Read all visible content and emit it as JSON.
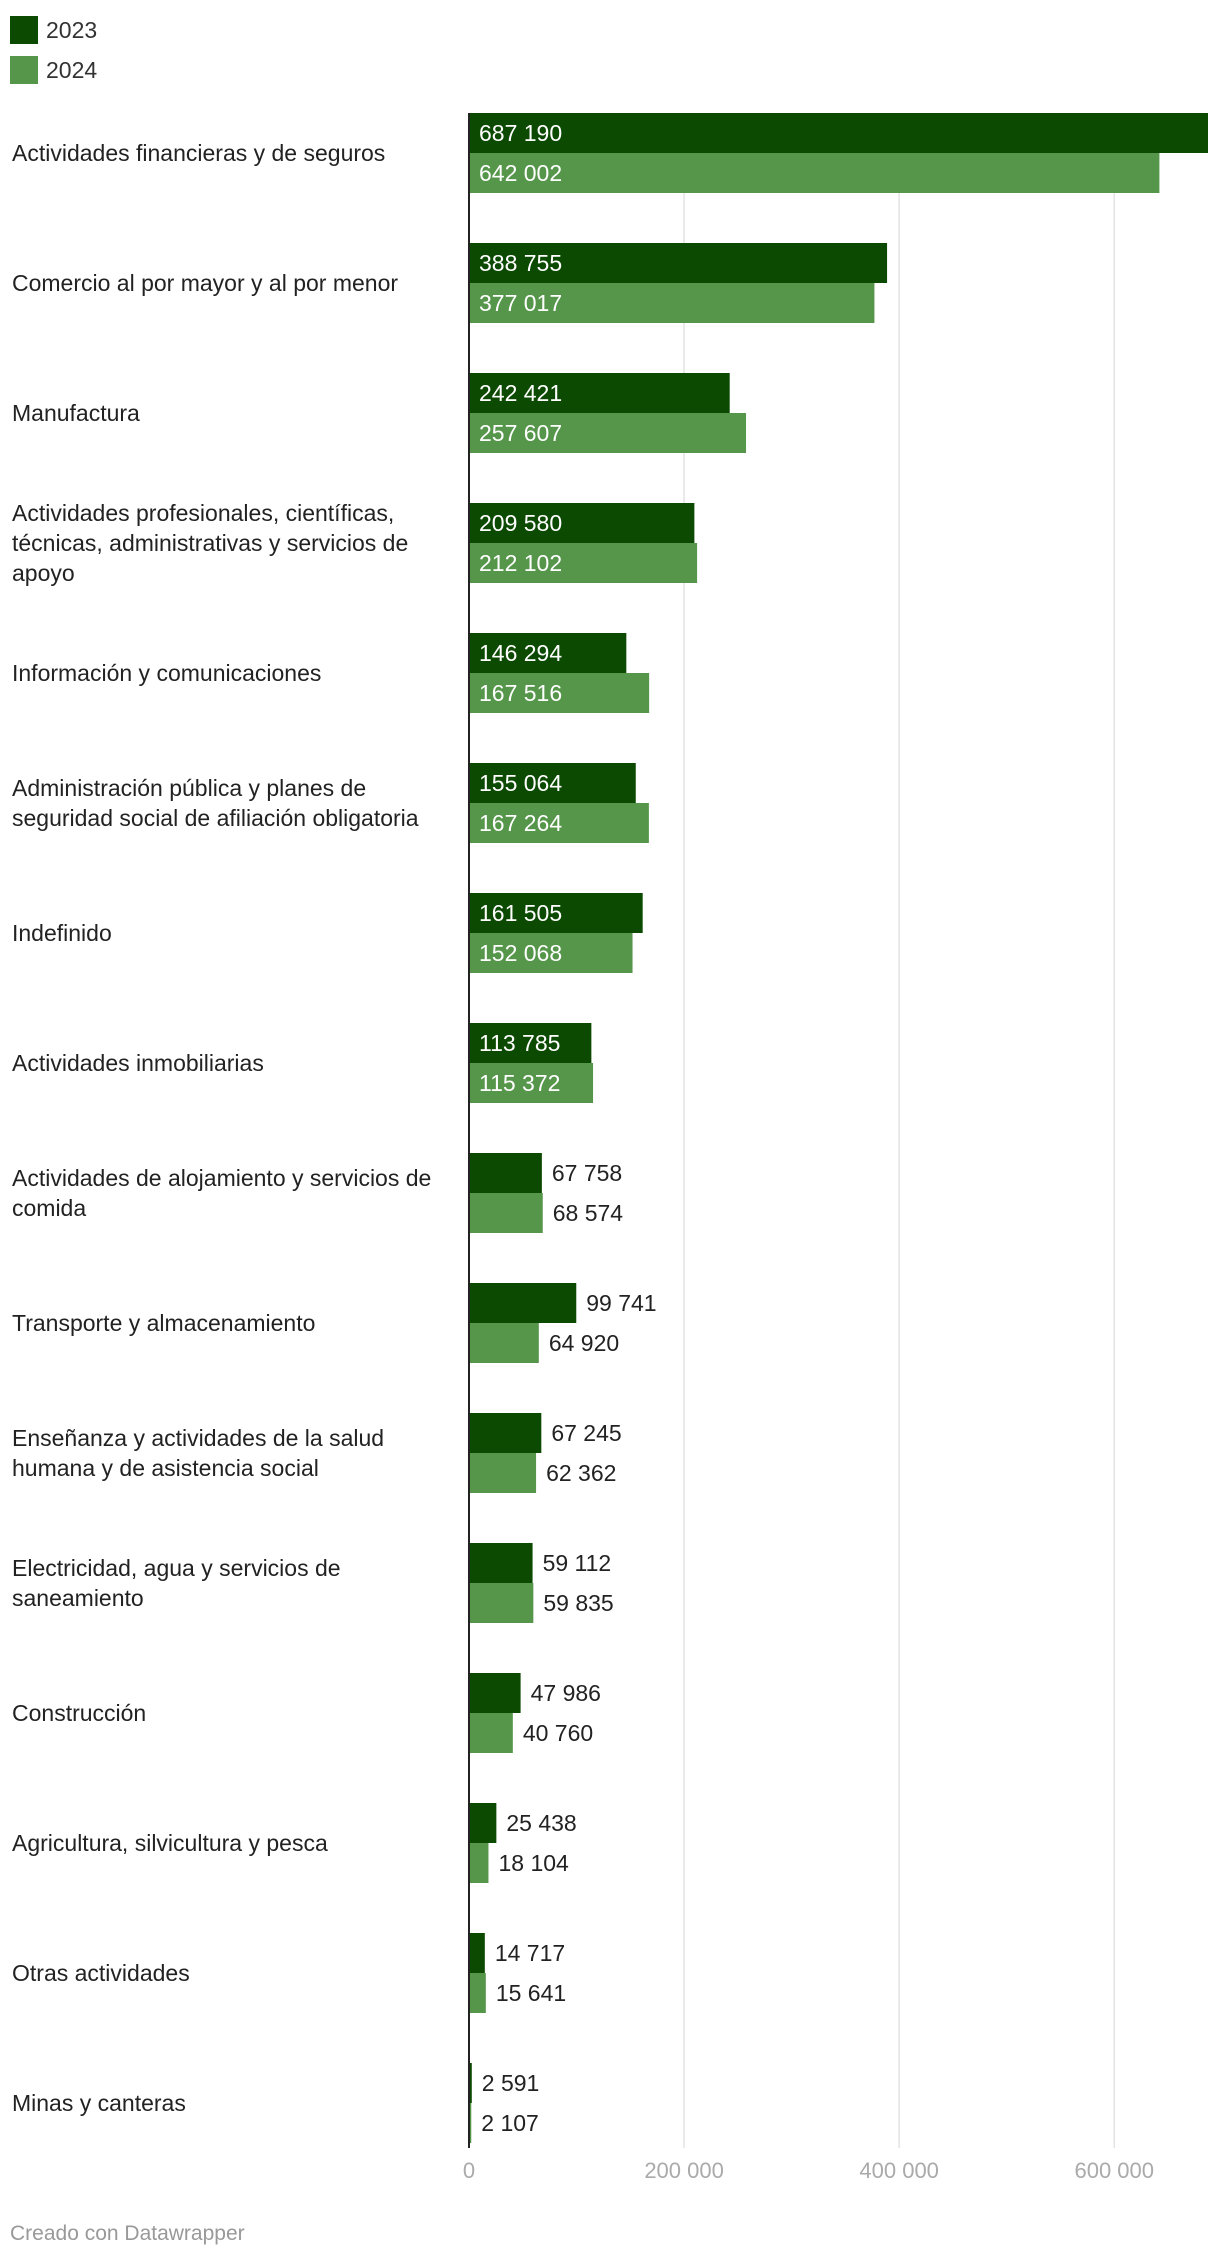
{
  "chart_data": {
    "type": "bar",
    "orientation": "horizontal",
    "title": "",
    "xlabel": "",
    "ylabel": "",
    "xlim": [
      0,
      687190
    ],
    "x_ticks": [
      0,
      200000,
      400000,
      600000
    ],
    "x_tick_labels": [
      "0",
      "200 000",
      "400 000",
      "600 000"
    ],
    "grid": true,
    "legend_position": "top-left",
    "categories": [
      "Actividades financieras y de seguros",
      "Comercio al por mayor y al por menor",
      "Manufactura",
      "Actividades profesionales, científicas, técnicas, administrativas y servicios de apoyo",
      "Información y comunicaciones",
      "Administración pública y planes de seguridad social de afiliación obligatoria",
      "Indefinido",
      "Actividades inmobiliarias",
      "Actividades de alojamiento y servicios de comida",
      "Transporte y almacenamiento",
      "Enseñanza y actividades de la salud humana y de asistencia social",
      "Electricidad, agua y servicios de saneamiento",
      "Construcción",
      "Agricultura, silvicultura y pesca",
      "Otras actividades",
      "Minas y canteras"
    ],
    "category_lines": [
      [
        "Actividades financieras y de seguros"
      ],
      [
        "Comercio al por mayor y al por menor"
      ],
      [
        "Manufactura"
      ],
      [
        "Actividades profesionales, científicas,",
        "técnicas, administrativas y servicios de",
        "apoyo"
      ],
      [
        "Información y comunicaciones"
      ],
      [
        "Administración pública y planes de",
        "seguridad social de afiliación obligatoria"
      ],
      [
        "Indefinido"
      ],
      [
        "Actividades inmobiliarias"
      ],
      [
        "Actividades de alojamiento y servicios de",
        "comida"
      ],
      [
        "Transporte y almacenamiento"
      ],
      [
        "Enseñanza y actividades de la salud",
        "humana y de asistencia social"
      ],
      [
        "Electricidad, agua y servicios de",
        "saneamiento"
      ],
      [
        "Construcción"
      ],
      [
        "Agricultura, silvicultura y pesca"
      ],
      [
        "Otras actividades"
      ],
      [
        "Minas y canteras"
      ]
    ],
    "series": [
      {
        "name": "2023",
        "color": "#0b4a00",
        "values": [
          687190,
          388755,
          242421,
          209580,
          146294,
          155064,
          161505,
          113785,
          67758,
          99741,
          67245,
          59112,
          47986,
          25438,
          14717,
          2591
        ],
        "labels": [
          "687 190",
          "388 755",
          "242 421",
          "209 580",
          "146 294",
          "155 064",
          "161 505",
          "113 785",
          "67 758",
          "99 741",
          "67 245",
          "59 112",
          "47 986",
          "25 438",
          "14 717",
          "2 591"
        ]
      },
      {
        "name": "2024",
        "color": "#55964a",
        "values": [
          642002,
          377017,
          257607,
          212102,
          167516,
          167264,
          152068,
          115372,
          68574,
          64920,
          62362,
          59835,
          40760,
          18104,
          15641,
          2107
        ],
        "labels": [
          "642 002",
          "377 017",
          "257 607",
          "212 102",
          "167 516",
          "167 264",
          "152 068",
          "115 372",
          "68 574",
          "64 920",
          "62 362",
          "59 835",
          "40 760",
          "18 104",
          "15 641",
          "2 107"
        ]
      }
    ]
  },
  "legend": {
    "items": [
      {
        "label": "2023",
        "color": "#0b4a00"
      },
      {
        "label": "2024",
        "color": "#55964a"
      }
    ]
  },
  "footer": {
    "credit": "Creado con Datawrapper"
  }
}
